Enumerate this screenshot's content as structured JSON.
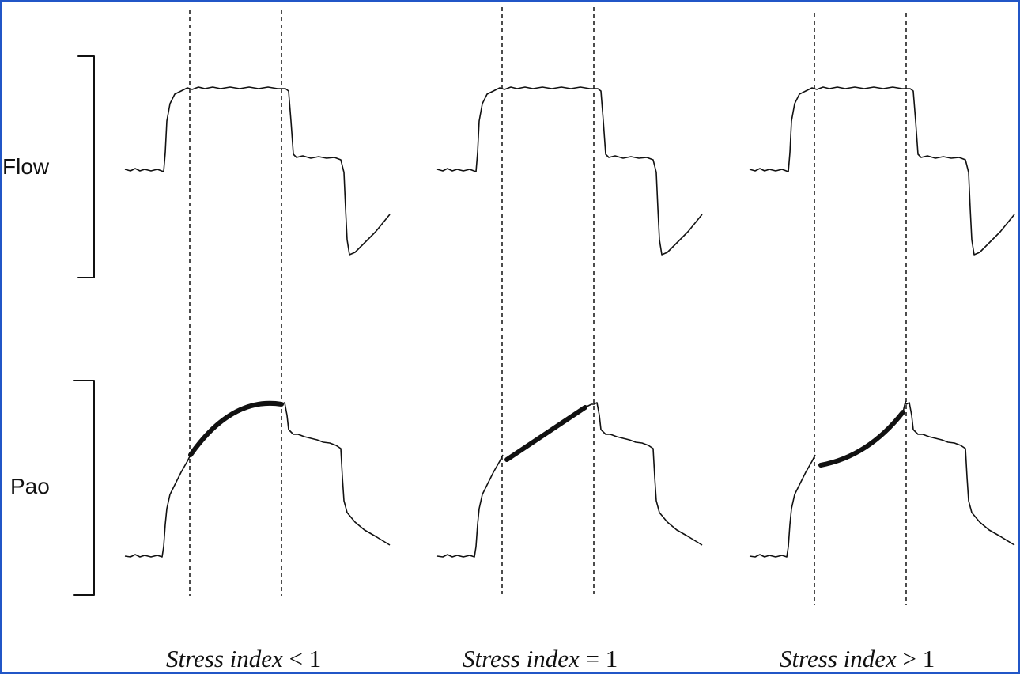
{
  "labels": {
    "flow": "Flow",
    "pao": "Pao"
  },
  "panels": [
    {
      "caption_text": "Stress index",
      "caption_relation": "< 1",
      "curvature": "concave"
    },
    {
      "caption_text": "Stress index",
      "caption_relation": "= 1",
      "curvature": "linear"
    },
    {
      "caption_text": "Stress index",
      "caption_relation": "> 1",
      "curvature": "convex"
    }
  ],
  "colors": {
    "frame_border": "#2156c7",
    "line": "#111111",
    "background": "#ffffff"
  }
}
